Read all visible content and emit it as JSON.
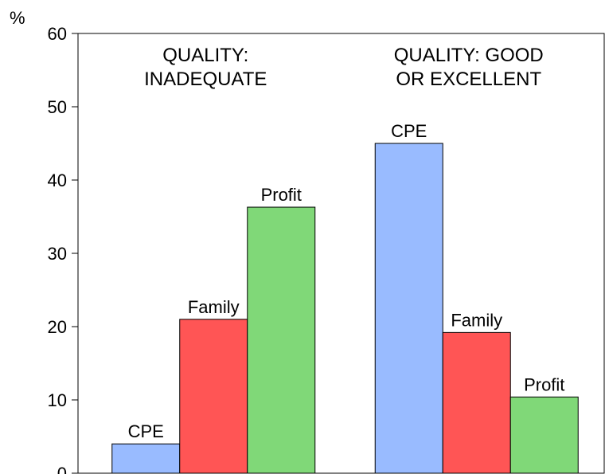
{
  "chart_data": {
    "type": "bar",
    "y_label": "%",
    "categories": [
      "QUALITY:\nINADEQUATE",
      "QUALITY: GOOD\nOR EXCELLENT"
    ],
    "series": [
      {
        "name": "CPE",
        "color": "#99bbff",
        "values": [
          4,
          45
        ]
      },
      {
        "name": "Family",
        "color": "#ff5555",
        "values": [
          21,
          19.2
        ]
      },
      {
        "name": "Profit",
        "color": "#80d878",
        "values": [
          36.3,
          10.4
        ]
      }
    ],
    "ylim": [
      0,
      60
    ],
    "yticks": [
      0,
      10,
      20,
      30,
      40,
      50,
      60
    ]
  }
}
